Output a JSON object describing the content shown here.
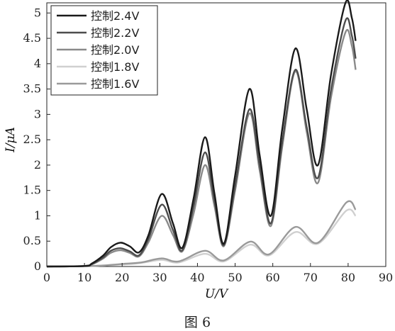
{
  "caption": "图 6",
  "chart_data": {
    "type": "line",
    "xlabel": "U/V",
    "ylabel": "I/μA",
    "xlim": [
      0,
      90
    ],
    "ylim": [
      0,
      5.2
    ],
    "xticks": [
      0,
      10,
      20,
      30,
      40,
      50,
      60,
      70,
      80,
      90
    ],
    "yticks": [
      0,
      0.5,
      1,
      1.5,
      2,
      2.5,
      3,
      3.5,
      4,
      4.5,
      5
    ],
    "grid": false,
    "legend_position": "top-left",
    "series": [
      {
        "name": "控制2.4V",
        "color": "#1a1a1a",
        "x": [
          0,
          10,
          12,
          15,
          17,
          19.5,
          22,
          24.5,
          27,
          30.5,
          33.5,
          36,
          39,
          42,
          44.5,
          47,
          50,
          53.8,
          56.5,
          59.5,
          62.5,
          66,
          69,
          72,
          75.5,
          79.3,
          81,
          82
        ],
        "y": [
          0,
          0.01,
          0.06,
          0.22,
          0.38,
          0.47,
          0.4,
          0.28,
          0.62,
          1.43,
          0.85,
          0.37,
          1.35,
          2.55,
          1.45,
          0.45,
          1.8,
          3.5,
          2.2,
          1.0,
          2.7,
          4.3,
          3.1,
          2.0,
          3.8,
          5.2,
          4.9,
          4.45
        ]
      },
      {
        "name": "控制2.2V",
        "color": "#4d4d4d",
        "x": [
          0,
          10,
          12,
          15,
          17,
          19.5,
          22,
          24.5,
          27,
          30.5,
          33.5,
          36,
          39,
          42,
          44.5,
          47,
          50,
          53.8,
          56.5,
          59.5,
          62.5,
          66,
          69,
          72,
          75.5,
          79.3,
          81,
          82
        ],
        "y": [
          0,
          0.01,
          0.05,
          0.18,
          0.31,
          0.36,
          0.3,
          0.22,
          0.55,
          1.22,
          0.72,
          0.32,
          1.2,
          2.25,
          1.3,
          0.42,
          1.6,
          3.1,
          2.0,
          0.85,
          2.45,
          3.88,
          2.75,
          1.75,
          3.5,
          4.85,
          4.55,
          4.1
        ]
      },
      {
        "name": "控制2.0V",
        "color": "#8a8a8a",
        "x": [
          0,
          10,
          12,
          15,
          17,
          19.5,
          22,
          24.5,
          27,
          30.5,
          33.5,
          36,
          39,
          42,
          44.5,
          47,
          50,
          53.8,
          56.5,
          59.5,
          62.5,
          66,
          69,
          72,
          75.5,
          79.3,
          81,
          82
        ],
        "y": [
          0,
          0.01,
          0.04,
          0.16,
          0.27,
          0.32,
          0.27,
          0.2,
          0.48,
          1.0,
          0.62,
          0.3,
          1.05,
          2.0,
          1.2,
          0.4,
          1.5,
          3.02,
          1.9,
          0.8,
          2.35,
          3.85,
          2.65,
          1.65,
          3.35,
          4.62,
          4.35,
          3.88
        ]
      },
      {
        "name": "控制1.8V",
        "color": "#d0d0d0",
        "x": [
          0,
          10,
          15,
          20,
          25,
          30.5,
          35,
          42,
          47,
          54,
          59,
          66,
          72,
          79.5,
          82
        ],
        "y": [
          0,
          0.005,
          0.02,
          0.04,
          0.07,
          0.13,
          0.08,
          0.25,
          0.1,
          0.43,
          0.22,
          0.68,
          0.45,
          1.1,
          1.0
        ]
      },
      {
        "name": "控制1.6V",
        "color": "#9a9a9a",
        "x": [
          0,
          10,
          15,
          20,
          25,
          30.5,
          35,
          42,
          47,
          54,
          59,
          66,
          72,
          79.5,
          82
        ],
        "y": [
          0,
          0.005,
          0.02,
          0.05,
          0.08,
          0.16,
          0.1,
          0.31,
          0.12,
          0.49,
          0.24,
          0.78,
          0.47,
          1.26,
          1.12
        ]
      }
    ]
  }
}
